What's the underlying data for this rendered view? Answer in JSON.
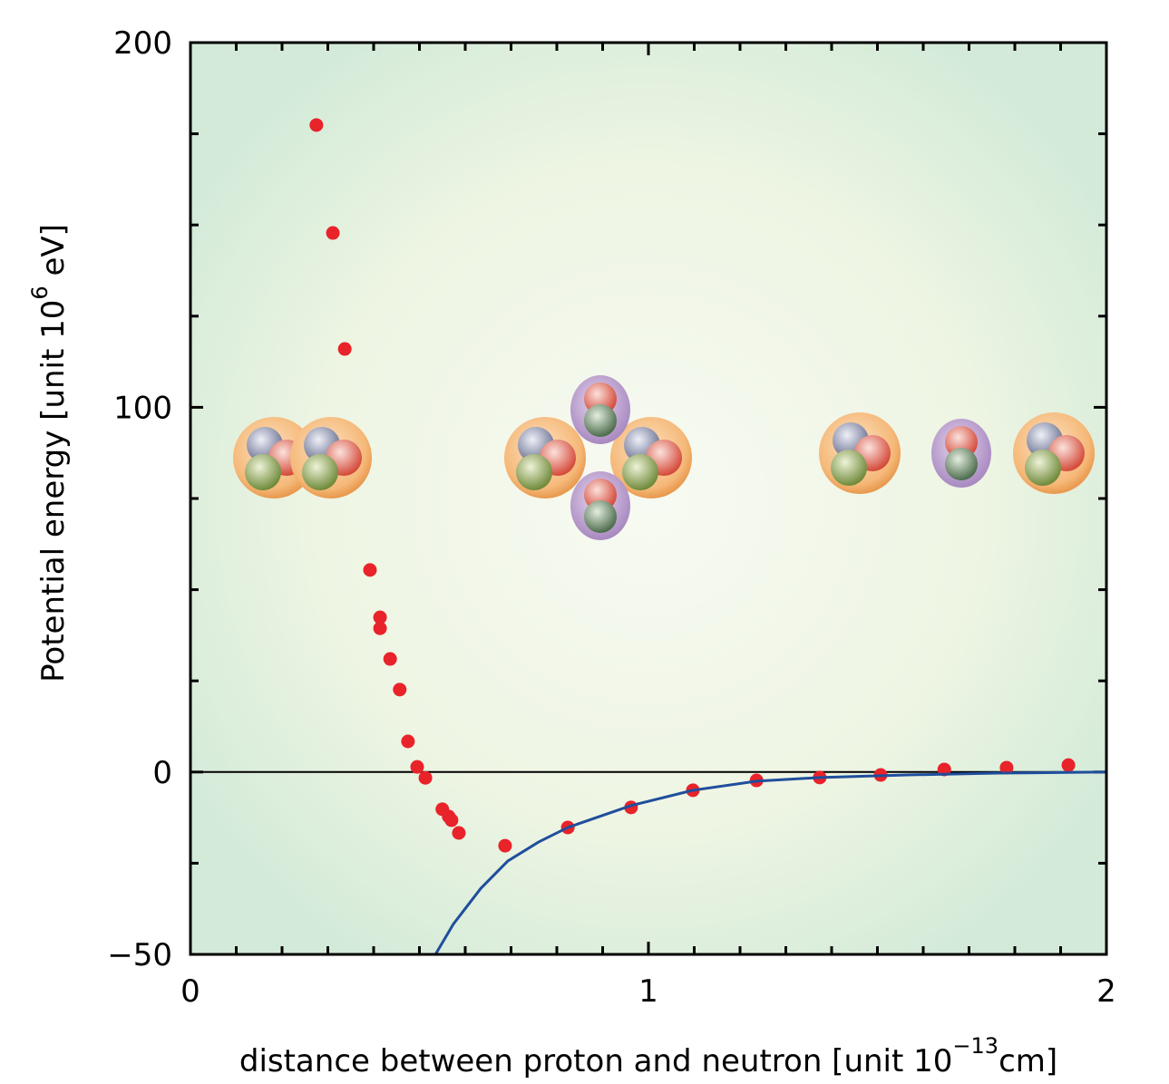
{
  "chart_data": {
    "type": "scatter",
    "xlabel": {
      "text": "distance between proton and neutron [unit 10",
      "sup": "−13",
      "tail": "cm]"
    },
    "ylabel": {
      "text": "Potential energy  [unit 10",
      "sup": "6",
      "tail": " eV]"
    },
    "xlim": [
      0,
      2
    ],
    "ylim": [
      -50,
      200
    ],
    "xticks": [
      0,
      1,
      2
    ],
    "yticks": [
      {
        "value": -50,
        "label": "−50"
      },
      0,
      100,
      200
    ],
    "x_minor_ticks": [
      0.1,
      0.2,
      0.3,
      0.4,
      0.5,
      0.6,
      0.7,
      0.8,
      0.9,
      1.1,
      1.2,
      1.3,
      1.4,
      1.5,
      1.6,
      1.7,
      1.8,
      1.9
    ],
    "y_minor_ticks": [
      -25,
      25,
      50,
      75,
      125,
      150,
      175
    ],
    "zero_line": true,
    "series": [
      {
        "type": "scatter",
        "color": "#e8232a",
        "x": [
          0.275,
          0.311,
          0.337,
          0.392,
          0.414,
          0.414,
          0.436,
          0.457,
          0.475,
          0.495,
          0.513,
          0.55,
          0.564,
          0.57,
          0.586,
          0.687,
          0.824,
          0.962,
          1.097,
          1.236,
          1.374,
          1.507,
          1.646,
          1.782,
          1.917
        ],
        "values": [
          177.4,
          147.8,
          116,
          55.4,
          42.4,
          39.4,
          31,
          22.6,
          8.4,
          1.4,
          -1.6,
          -10.2,
          -12.2,
          -13.2,
          -16.7,
          -20.2,
          -15.2,
          -9.7,
          -5.0,
          -2.3,
          -1.5,
          -0.8,
          0.7,
          1.2,
          1.9
        ]
      },
      {
        "type": "line",
        "color": "#1f4e9c",
        "x": [
          0.535,
          0.574,
          0.634,
          0.693,
          0.76,
          0.824,
          0.962,
          1.097,
          1.236,
          1.374,
          1.564,
          1.762,
          2.0
        ],
        "values": [
          -50,
          -41.7,
          -31.9,
          -24.4,
          -19.2,
          -15.2,
          -9.2,
          -5.0,
          -2.5,
          -1.5,
          -0.8,
          -0.3,
          0
        ]
      }
    ]
  }
}
